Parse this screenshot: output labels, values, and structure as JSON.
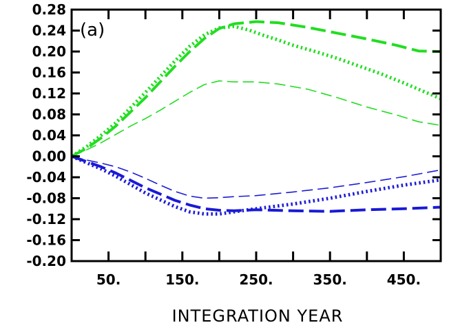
{
  "chart_data": {
    "type": "line",
    "panel_label": "(a)",
    "xlabel": "INTEGRATION YEAR",
    "ylabel": "",
    "xlim": [
      0,
      500
    ],
    "ylim": [
      -0.2,
      0.28
    ],
    "x_ticks": [
      50,
      150,
      250,
      350,
      450
    ],
    "x_tick_labels": [
      "50.",
      "150.",
      "250.",
      "350.",
      "450."
    ],
    "x_minor_ticks": [
      100,
      200,
      300,
      400
    ],
    "y_ticks": [
      -0.2,
      -0.16,
      -0.12,
      -0.08,
      -0.04,
      0.0,
      0.04,
      0.08,
      0.12,
      0.16,
      0.2,
      0.24,
      0.28
    ],
    "y_tick_labels": [
      "-0.20",
      "-0.16",
      "-0.12",
      "-0.08",
      "-0.04",
      "0.00",
      "0.04",
      "0.08",
      "0.12",
      "0.16",
      "0.20",
      "0.24",
      "0.28"
    ],
    "grid": false,
    "series": [
      {
        "color": "#22dd22",
        "style": "dash-thick",
        "x": [
          0,
          20,
          40,
          60,
          80,
          100,
          120,
          140,
          160,
          180,
          200,
          220,
          250,
          280,
          320,
          360,
          400,
          440,
          470,
          500
        ],
        "y": [
          0.0,
          0.015,
          0.035,
          0.058,
          0.085,
          0.112,
          0.142,
          0.172,
          0.2,
          0.225,
          0.244,
          0.253,
          0.257,
          0.255,
          0.246,
          0.235,
          0.224,
          0.212,
          0.201,
          0.2
        ]
      },
      {
        "color": "#22dd22",
        "style": "dot-thick",
        "x": [
          0,
          20,
          40,
          60,
          80,
          100,
          120,
          140,
          160,
          180,
          200,
          220,
          240,
          260,
          280,
          300,
          330,
          360,
          390,
          420,
          450,
          480,
          500
        ],
        "y": [
          0.0,
          0.018,
          0.04,
          0.064,
          0.093,
          0.122,
          0.152,
          0.182,
          0.21,
          0.232,
          0.245,
          0.248,
          0.241,
          0.231,
          0.222,
          0.212,
          0.2,
          0.187,
          0.172,
          0.157,
          0.14,
          0.122,
          0.11
        ]
      },
      {
        "color": "#22dd22",
        "style": "dash-thin",
        "x": [
          0,
          20,
          40,
          60,
          80,
          100,
          120,
          140,
          160,
          180,
          200,
          220,
          250,
          280,
          320,
          360,
          400,
          440,
          470,
          500
        ],
        "y": [
          0.0,
          0.012,
          0.026,
          0.042,
          0.058,
          0.072,
          0.088,
          0.105,
          0.122,
          0.137,
          0.144,
          0.142,
          0.142,
          0.138,
          0.128,
          0.112,
          0.094,
          0.079,
          0.066,
          0.059
        ]
      },
      {
        "color": "#1a1ad6",
        "style": "dash-thick",
        "x": [
          0,
          20,
          40,
          60,
          80,
          100,
          120,
          140,
          160,
          180,
          200,
          220,
          250,
          300,
          350,
          400,
          450,
          500
        ],
        "y": [
          0.0,
          -0.01,
          -0.02,
          -0.032,
          -0.046,
          -0.06,
          -0.072,
          -0.084,
          -0.093,
          -0.1,
          -0.103,
          -0.104,
          -0.102,
          -0.104,
          -0.105,
          -0.102,
          -0.1,
          -0.097
        ]
      },
      {
        "color": "#1a1ad6",
        "style": "dot-thick",
        "x": [
          0,
          20,
          40,
          60,
          80,
          100,
          120,
          140,
          160,
          180,
          200,
          220,
          250,
          300,
          350,
          400,
          450,
          500
        ],
        "y": [
          0.0,
          -0.012,
          -0.024,
          -0.038,
          -0.054,
          -0.07,
          -0.083,
          -0.096,
          -0.106,
          -0.11,
          -0.11,
          -0.106,
          -0.1,
          -0.091,
          -0.08,
          -0.067,
          -0.055,
          -0.045
        ]
      },
      {
        "color": "#1a1ad6",
        "style": "dash-thin",
        "x": [
          0,
          20,
          40,
          60,
          80,
          100,
          120,
          140,
          160,
          180,
          200,
          220,
          250,
          300,
          350,
          400,
          450,
          500
        ],
        "y": [
          0.0,
          -0.007,
          -0.013,
          -0.02,
          -0.03,
          -0.042,
          -0.055,
          -0.067,
          -0.076,
          -0.08,
          -0.079,
          -0.077,
          -0.075,
          -0.068,
          -0.06,
          -0.05,
          -0.039,
          -0.026
        ]
      }
    ]
  }
}
